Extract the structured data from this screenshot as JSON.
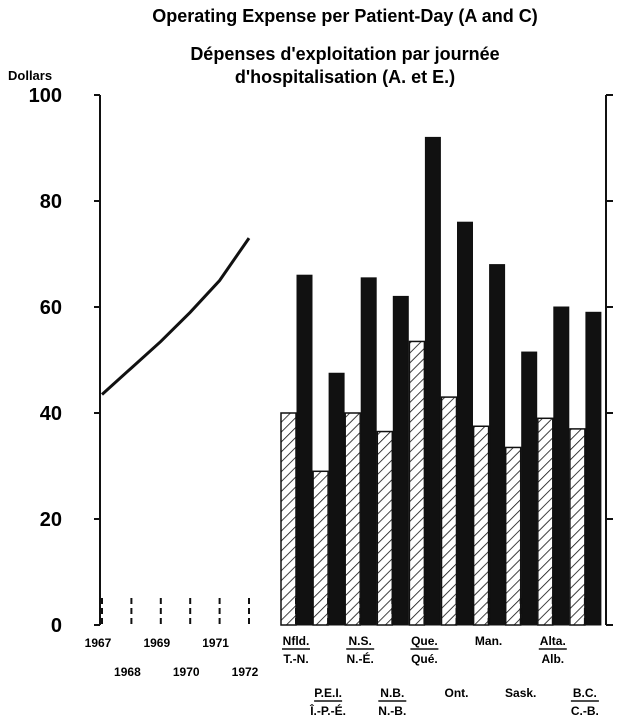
{
  "chart_data": {
    "type": "bar",
    "title": "Operating Expense per Patient-Day (A and C)",
    "subtitle_line1": "Dépenses d'exploitation par journée",
    "subtitle_line2": "d'hospitalisation (A. et E.)",
    "ylabel": "Dollars",
    "ylim": [
      0,
      100
    ],
    "yticks": [
      0,
      20,
      40,
      60,
      80,
      100
    ],
    "trend_line": {
      "x": [
        "1967",
        "1968",
        "1969",
        "1970",
        "1971",
        "1972"
      ],
      "values": [
        43.5,
        48.5,
        53.5,
        59,
        65,
        73
      ]
    },
    "categories": [
      {
        "top": "Nfld.",
        "bottom": "T.-N."
      },
      {
        "top": "P.E.I.",
        "bottom": "Î.-P.-É."
      },
      {
        "top": "N.S.",
        "bottom": "N.-É."
      },
      {
        "top": "N.B.",
        "bottom": "N.-B."
      },
      {
        "top": "Que.",
        "bottom": "Qué."
      },
      {
        "top": "Ont.",
        "bottom": ""
      },
      {
        "top": "Man.",
        "bottom": ""
      },
      {
        "top": "Sask.",
        "bottom": ""
      },
      {
        "top": "Alta.",
        "bottom": "Alb."
      },
      {
        "top": "B.C.",
        "bottom": "C.-B."
      }
    ],
    "series": [
      {
        "pattern": "hatched",
        "values": [
          40,
          29,
          40,
          36.5,
          53.5,
          43,
          37.5,
          33.5,
          39,
          37
        ]
      },
      {
        "pattern": "solid",
        "values": [
          66,
          47.5,
          65.5,
          62,
          92,
          76,
          68,
          51.5,
          60,
          59
        ]
      }
    ],
    "colors": {
      "ink": "#111111",
      "background": "#ffffff"
    }
  }
}
